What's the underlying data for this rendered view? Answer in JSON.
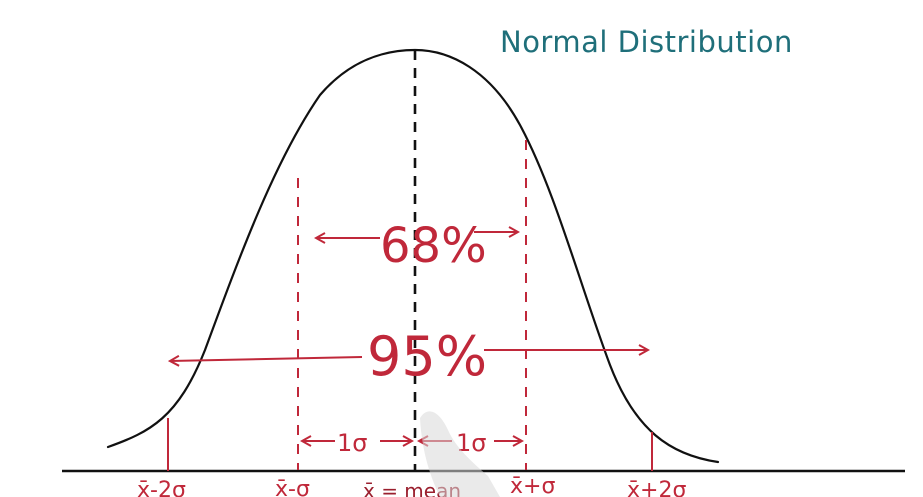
{
  "title": "Normal Distribution",
  "inner_label": "68%",
  "outer_label": "95%",
  "left_sigma": "1σ",
  "right_sigma": "1σ",
  "ticks": {
    "minus2": "x̄-2σ",
    "minus1": "x̄-σ",
    "mean": "x̄ = mean",
    "plus1": "x̄+σ",
    "plus2": "x̄+2σ"
  },
  "colors": {
    "curve": "#111111",
    "annotation": "#c0283a",
    "title": "#1f6f7a"
  }
}
